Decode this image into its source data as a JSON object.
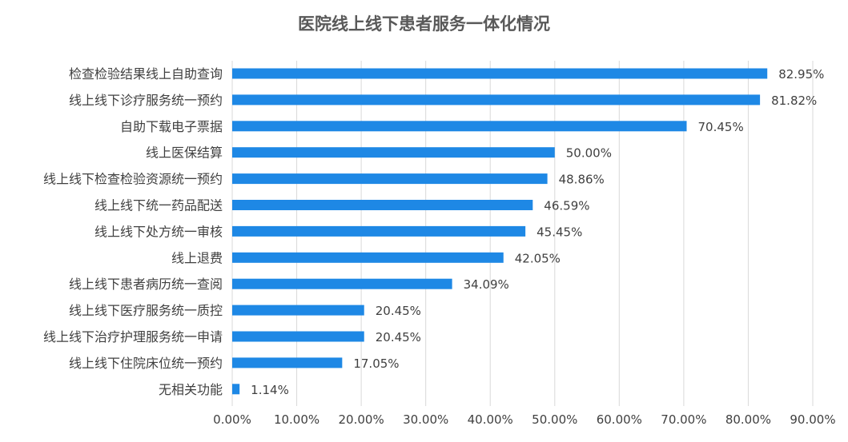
{
  "chart_data": {
    "type": "bar",
    "orientation": "horizontal",
    "title": "医院线上线下患者服务一体化情况",
    "xlabel": "",
    "ylabel": "",
    "xlim": [
      0,
      90
    ],
    "grid": true,
    "legend": "none",
    "bar_color": "#1e88e5",
    "x_ticks": [
      "0.00%",
      "10.00%",
      "20.00%",
      "30.00%",
      "40.00%",
      "50.00%",
      "60.00%",
      "70.00%",
      "80.00%",
      "90.00%"
    ],
    "categories": [
      "检查检验结果线上自助查询",
      "线上线下诊疗服务统一预约",
      "自助下载电子票据",
      "线上医保结算",
      "线上线下检查检验资源统一预约",
      "线上线下统一药品配送",
      "线上线下处方统一审核",
      "线上退费",
      "线上线下患者病历统一查阅",
      "线上线下医疗服务统一质控",
      "线上线下治疗护理服务统一申请",
      "线上线下住院床位统一预约",
      "无相关功能"
    ],
    "values": [
      82.95,
      81.82,
      70.45,
      50.0,
      48.86,
      46.59,
      45.45,
      42.05,
      34.09,
      20.45,
      20.45,
      17.05,
      1.14
    ],
    "value_labels": [
      "82.95%",
      "81.82%",
      "70.45%",
      "50.00%",
      "48.86%",
      "46.59%",
      "45.45%",
      "42.05%",
      "34.09%",
      "20.45%",
      "20.45%",
      "17.05%",
      "1.14%"
    ]
  }
}
